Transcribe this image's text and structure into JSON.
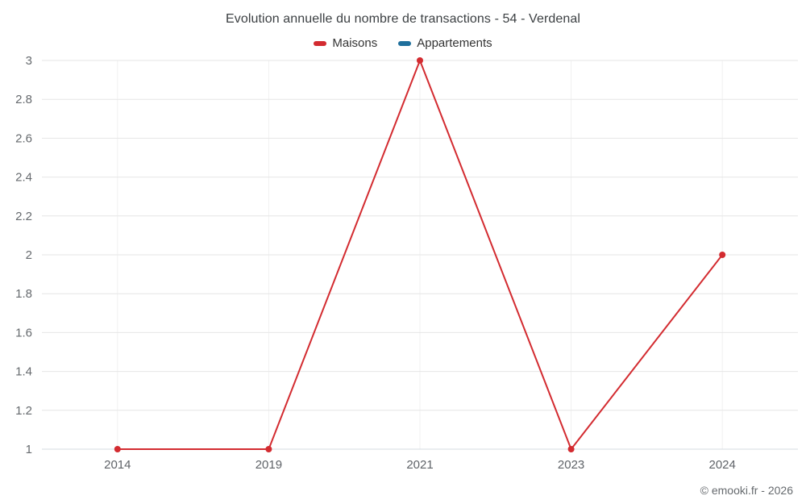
{
  "header": {
    "title": "Evolution annuelle du nombre de transactions - 54 - Verdenal"
  },
  "legend": {
    "items": [
      {
        "label": "Maisons",
        "color": "#d32b30"
      },
      {
        "label": "Appartements",
        "color": "#1f6f9c"
      }
    ]
  },
  "footer": {
    "copyright": "© emooki.fr - 2026"
  },
  "chart_data": {
    "type": "line",
    "title": "Evolution annuelle du nombre de transactions - 54 - Verdenal",
    "categories": [
      "2014",
      "2019",
      "2021",
      "2023",
      "2024"
    ],
    "series": [
      {
        "name": "Maisons",
        "color": "#d32b30",
        "values": [
          1,
          1,
          3,
          1,
          2
        ]
      },
      {
        "name": "Appartements",
        "color": "#1f6f9c",
        "values": []
      }
    ],
    "xlabel": "",
    "ylabel": "",
    "ylim": [
      1,
      3
    ],
    "ytick_step": 0.2,
    "ytick_labels": [
      "1",
      "1.2",
      "1.4",
      "1.6",
      "1.8",
      "2",
      "2.2",
      "2.4",
      "2.6",
      "2.8",
      "3"
    ],
    "grid": true,
    "legend_position": "top"
  }
}
